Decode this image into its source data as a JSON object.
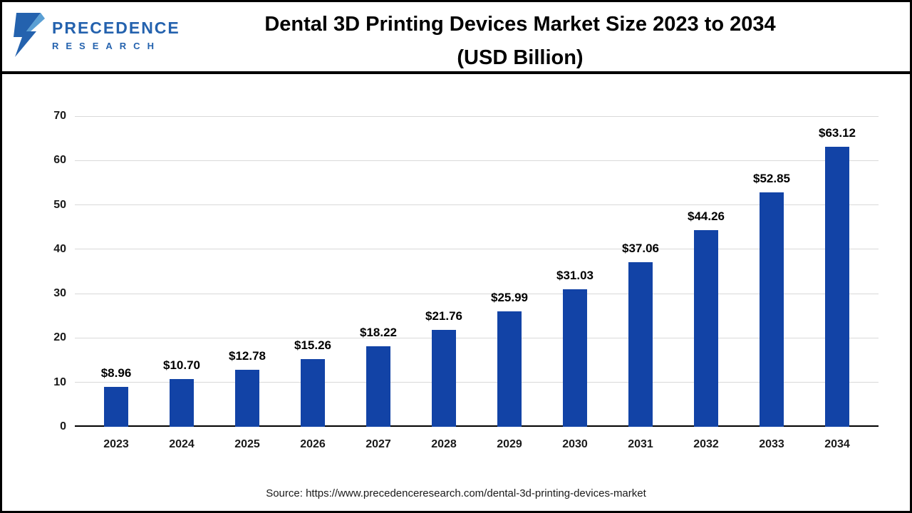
{
  "logo": {
    "line1": "PRECEDENCE",
    "line2": "RESEARCH"
  },
  "header": {
    "title_line1": "Dental 3D Printing Devices Market Size 2023 to 2034",
    "title_line2": "(USD Billion)"
  },
  "footer": {
    "source": "Source: https://www.precedenceresearch.com/dental-3d-printing-devices-market"
  },
  "chart_data": {
    "type": "bar",
    "title": "Dental 3D Printing Devices Market Size 2023 to 2034 (USD Billion)",
    "categories": [
      "2023",
      "2024",
      "2025",
      "2026",
      "2027",
      "2028",
      "2029",
      "2030",
      "2031",
      "2032",
      "2033",
      "2034"
    ],
    "values": [
      8.96,
      10.7,
      12.78,
      15.26,
      18.22,
      21.76,
      25.99,
      31.03,
      37.06,
      44.26,
      52.85,
      63.12
    ],
    "labels": [
      "$8.96",
      "$10.70",
      "$12.78",
      "$15.26",
      "$18.22",
      "$21.76",
      "$25.99",
      "$31.03",
      "$37.06",
      "$44.26",
      "$52.85",
      "$63.12"
    ],
    "xlabel": "",
    "ylabel": "",
    "ylim": [
      0,
      70
    ],
    "yticks": [
      0,
      10,
      20,
      30,
      40,
      50,
      60,
      70
    ],
    "grid": true,
    "legend": "none",
    "bar_color": "#1243a6",
    "grid_color": "#d9d9d9"
  }
}
